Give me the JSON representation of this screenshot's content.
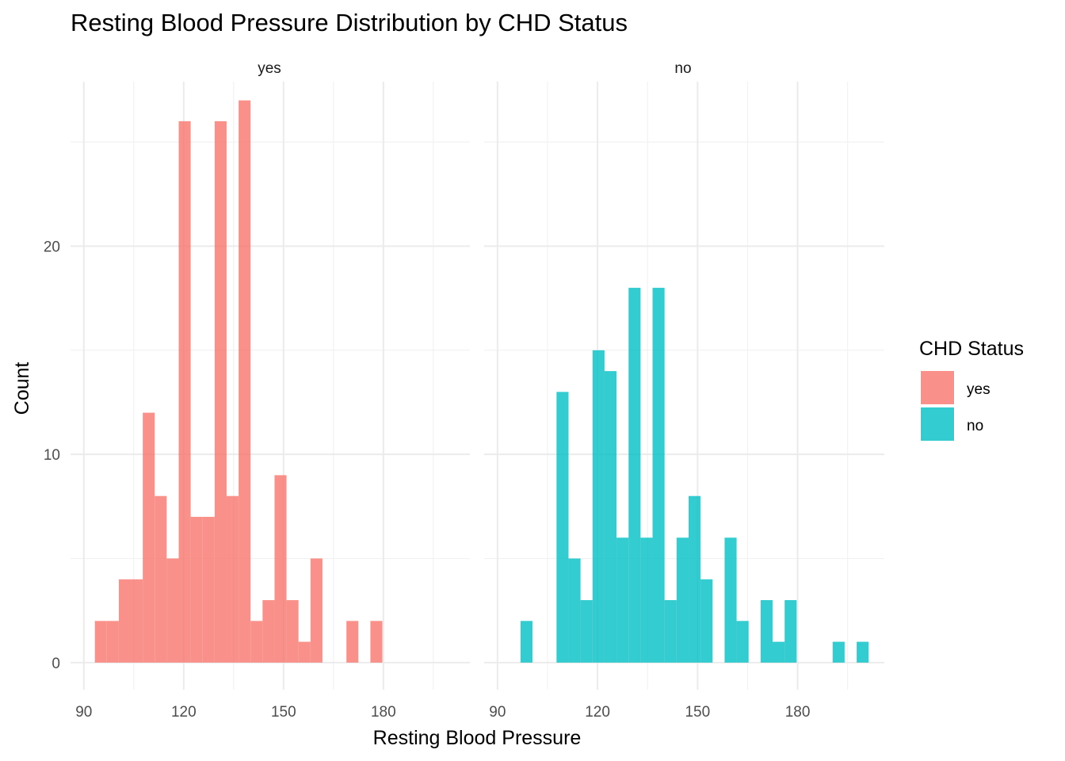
{
  "chart_data": {
    "type": "bar",
    "title": "Resting Blood Pressure Distribution by CHD Status",
    "xlabel": "Resting Blood Pressure",
    "ylabel": "Count",
    "xlim": [
      86,
      206
    ],
    "ylim": [
      -1.3,
      27.9
    ],
    "x_ticks": [
      "90",
      "120",
      "150",
      "180"
    ],
    "y_ticks": [
      "0",
      "10",
      "20"
    ],
    "bin_width": 3.6,
    "grid": true,
    "legend": {
      "title": "CHD Status",
      "position": "right",
      "entries": [
        {
          "label": "yes",
          "color": "#F8766D"
        },
        {
          "label": "no",
          "color": "#00BFC4"
        }
      ]
    },
    "panels": [
      {
        "name": "yes",
        "color": "#F8766D",
        "bins": [
          {
            "x": 95.1,
            "count": 2
          },
          {
            "x": 98.7,
            "count": 2
          },
          {
            "x": 102.3,
            "count": 4
          },
          {
            "x": 105.9,
            "count": 4
          },
          {
            "x": 109.5,
            "count": 12
          },
          {
            "x": 113.1,
            "count": 8
          },
          {
            "x": 116.7,
            "count": 5
          },
          {
            "x": 120.3,
            "count": 26
          },
          {
            "x": 123.9,
            "count": 7
          },
          {
            "x": 127.5,
            "count": 7
          },
          {
            "x": 131.1,
            "count": 26
          },
          {
            "x": 134.7,
            "count": 8
          },
          {
            "x": 138.3,
            "count": 27
          },
          {
            "x": 141.9,
            "count": 2
          },
          {
            "x": 145.5,
            "count": 3
          },
          {
            "x": 149.1,
            "count": 9
          },
          {
            "x": 152.7,
            "count": 3
          },
          {
            "x": 156.3,
            "count": 1
          },
          {
            "x": 159.9,
            "count": 5
          },
          {
            "x": 163.5,
            "count": 0
          },
          {
            "x": 167.1,
            "count": 0
          },
          {
            "x": 170.7,
            "count": 2
          },
          {
            "x": 174.3,
            "count": 0
          },
          {
            "x": 177.9,
            "count": 2
          }
        ]
      },
      {
        "name": "no",
        "color": "#00BFC4",
        "bins": [
          {
            "x": 98.7,
            "count": 2
          },
          {
            "x": 102.3,
            "count": 0
          },
          {
            "x": 105.9,
            "count": 0
          },
          {
            "x": 109.5,
            "count": 13
          },
          {
            "x": 113.1,
            "count": 5
          },
          {
            "x": 116.7,
            "count": 3
          },
          {
            "x": 120.3,
            "count": 15
          },
          {
            "x": 123.9,
            "count": 14
          },
          {
            "x": 127.5,
            "count": 6
          },
          {
            "x": 131.1,
            "count": 18
          },
          {
            "x": 134.7,
            "count": 6
          },
          {
            "x": 138.3,
            "count": 18
          },
          {
            "x": 141.9,
            "count": 3
          },
          {
            "x": 145.5,
            "count": 6
          },
          {
            "x": 149.1,
            "count": 8
          },
          {
            "x": 152.7,
            "count": 4
          },
          {
            "x": 156.3,
            "count": 0
          },
          {
            "x": 159.9,
            "count": 6
          },
          {
            "x": 163.5,
            "count": 2
          },
          {
            "x": 167.1,
            "count": 0
          },
          {
            "x": 170.7,
            "count": 3
          },
          {
            "x": 174.3,
            "count": 1
          },
          {
            "x": 177.9,
            "count": 3
          },
          {
            "x": 181.5,
            "count": 0
          },
          {
            "x": 185.1,
            "count": 0
          },
          {
            "x": 188.7,
            "count": 0
          },
          {
            "x": 192.3,
            "count": 1
          },
          {
            "x": 195.9,
            "count": 0
          },
          {
            "x": 199.5,
            "count": 1
          }
        ]
      }
    ]
  }
}
